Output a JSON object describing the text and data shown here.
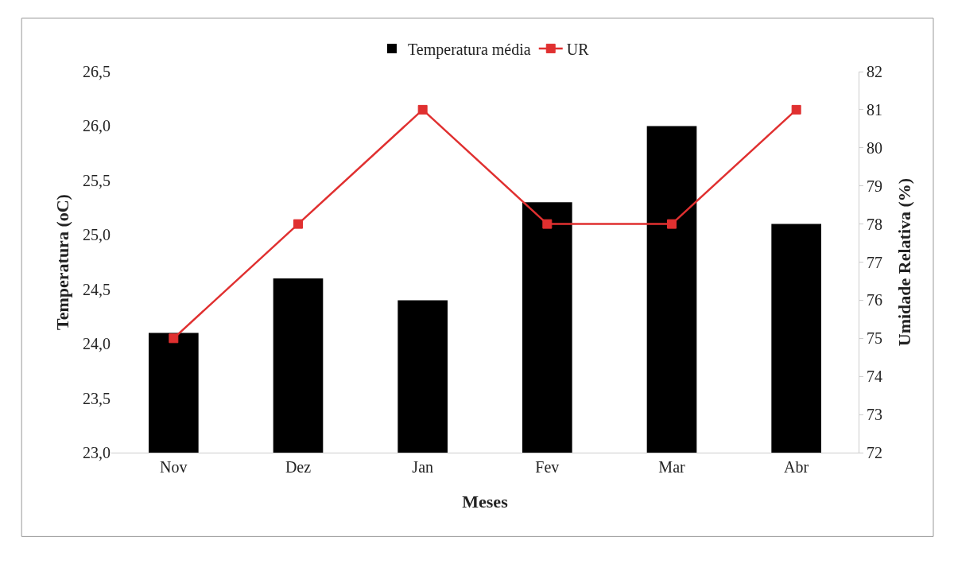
{
  "chart_data": {
    "type": "bar",
    "xlabel": "Meses",
    "ylabel": "Temperatura (oC)",
    "y2label": "Umidade Relativa (%)",
    "categories": [
      "Nov",
      "Dez",
      "Jan",
      "Fev",
      "Mar",
      "Abr"
    ],
    "series": [
      {
        "name": "Temperatura média",
        "color": "#000000",
        "values": [
          24.1,
          24.6,
          24.4,
          25.3,
          26.0,
          25.1
        ]
      },
      {
        "name": "UR",
        "type": "line",
        "axis": "y2",
        "color": "#e03030",
        "values": [
          75,
          78,
          81,
          78,
          78,
          81
        ]
      }
    ],
    "marker": "square",
    "line_style": "solid",
    "ylim": [
      23,
      26.5
    ],
    "yticks": [
      {
        "value": 23,
        "label": "23,0"
      },
      {
        "value": 23.5,
        "label": "23,5"
      },
      {
        "value": 24,
        "label": "24,0"
      },
      {
        "value": 24.5,
        "label": "24,5"
      },
      {
        "value": 25,
        "label": "25,0"
      },
      {
        "value": 25.5,
        "label": "25,5"
      },
      {
        "value": 26,
        "label": "26,0"
      },
      {
        "value": 26.5,
        "label": "26,5"
      }
    ],
    "y2lim": [
      72,
      82
    ],
    "y2ticks": [
      72,
      73,
      74,
      75,
      76,
      77,
      78,
      79,
      80,
      81,
      82
    ],
    "grid": false,
    "legend": "top"
  }
}
